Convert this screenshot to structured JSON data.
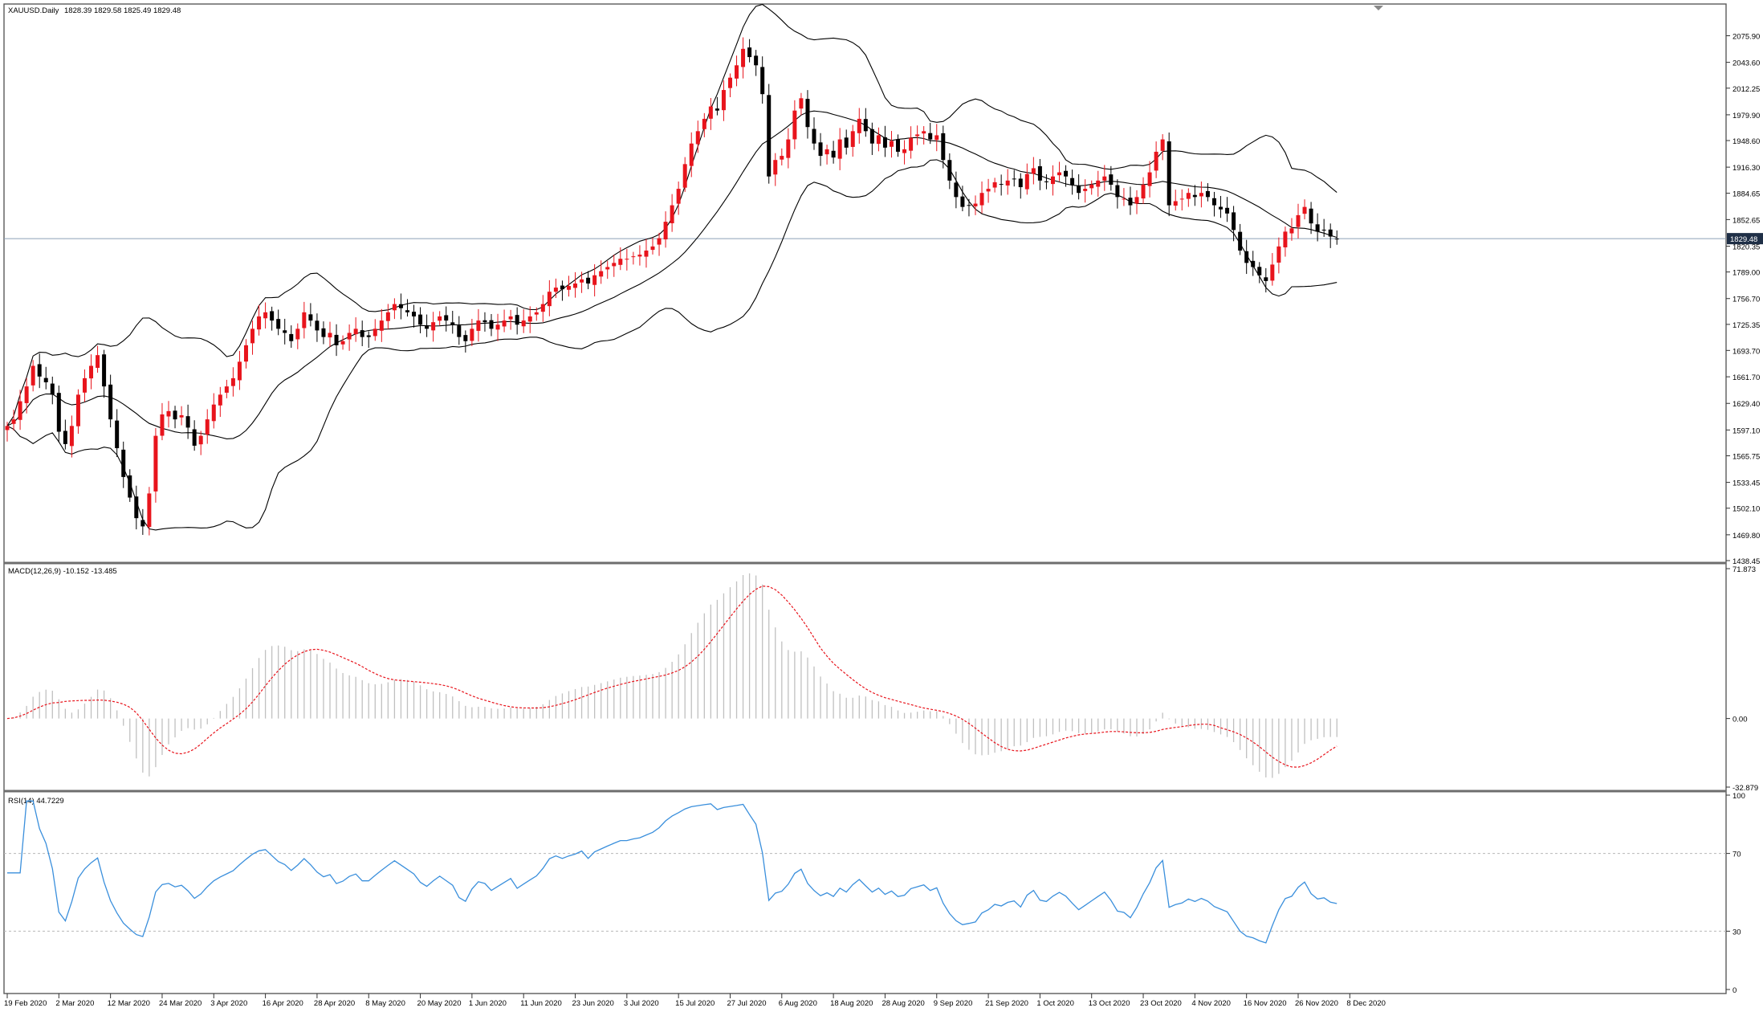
{
  "chart_data": {
    "type": "candlestick",
    "symbol": "XAUUSD.Daily",
    "ohlc_readout": "1828.39 1829.58 1825.49 1829.48",
    "current_price": 1829.48,
    "current_price_label": "1829.48",
    "colors": {
      "bull": "#e8141c",
      "bear": "#000000",
      "bands": "#000000",
      "price_line": "#8ea0b8",
      "macd_hist": "#c0c0c0",
      "macd_signal": "#e8141c",
      "rsi": "#3a8fdc",
      "rsi_levels": "#b8b8b8"
    },
    "price_axis": {
      "range": [
        1438.45,
        2092.0
      ],
      "tick_labels": [
        "2075.90",
        "2043.60",
        "2012.25",
        "1979.90",
        "1948.60",
        "1916.30",
        "1884.65",
        "1852.65",
        "1820.35",
        "1789.00",
        "1756.70",
        "1725.35",
        "1693.70",
        "1661.70",
        "1629.40",
        "1597.10",
        "1565.75",
        "1533.45",
        "1502.10",
        "1469.80",
        "1438.45"
      ]
    },
    "x_axis_labels": [
      "19 Feb 2020",
      "2 Mar 2020",
      "12 Mar 2020",
      "24 Mar 2020",
      "3 Apr 2020",
      "16 Apr 2020",
      "28 Apr 2020",
      "8 May 2020",
      "20 May 2020",
      "1 Jun 2020",
      "11 Jun 2020",
      "23 Jun 2020",
      "3 Jul 2020",
      "15 Jul 2020",
      "27 Jul 2020",
      "6 Aug 2020",
      "18 Aug 2020",
      "28 Aug 2020",
      "9 Sep 2020",
      "21 Sep 2020",
      "1 Oct 2020",
      "13 Oct 2020",
      "23 Oct 2020",
      "4 Nov 2020",
      "16 Nov 2020",
      "26 Nov 2020",
      "8 Dec 2020"
    ],
    "x_label_bar_index": [
      0,
      8,
      16,
      24,
      32,
      40,
      48,
      56,
      64,
      72,
      80,
      88,
      96,
      104,
      112,
      120,
      128,
      136,
      144,
      152,
      160,
      168,
      176,
      184,
      192,
      200,
      208
    ],
    "close": [
      1602,
      1610,
      1632,
      1650,
      1675,
      1662,
      1655,
      1640,
      1595,
      1580,
      1602,
      1640,
      1660,
      1675,
      1688,
      1650,
      1610,
      1575,
      1540,
      1515,
      1490,
      1480,
      1520,
      1590,
      1616,
      1620,
      1610,
      1615,
      1600,
      1578,
      1590,
      1610,
      1628,
      1640,
      1650,
      1660,
      1680,
      1700,
      1720,
      1735,
      1740,
      1730,
      1720,
      1715,
      1705,
      1720,
      1740,
      1730,
      1718,
      1710,
      1715,
      1700,
      1705,
      1715,
      1720,
      1710,
      1710,
      1720,
      1730,
      1740,
      1750,
      1745,
      1740,
      1735,
      1725,
      1720,
      1728,
      1735,
      1730,
      1725,
      1710,
      1705,
      1720,
      1730,
      1728,
      1720,
      1725,
      1730,
      1735,
      1725,
      1730,
      1735,
      1740,
      1750,
      1765,
      1770,
      1768,
      1772,
      1775,
      1780,
      1775,
      1785,
      1790,
      1795,
      1800,
      1805,
      1805,
      1808,
      1810,
      1815,
      1820,
      1830,
      1850,
      1870,
      1890,
      1920,
      1945,
      1960,
      1975,
      1990,
      1985,
      2010,
      2025,
      2040,
      2060,
      2050,
      2040,
      2005,
      1905,
      1925,
      1930,
      1950,
      1985,
      2000,
      1965,
      1945,
      1930,
      1938,
      1928,
      1950,
      1940,
      1960,
      1975,
      1960,
      1945,
      1955,
      1940,
      1948,
      1935,
      1938,
      1952,
      1956,
      1960,
      1950,
      1955,
      1925,
      1900,
      1880,
      1868,
      1870,
      1872,
      1885,
      1890,
      1898,
      1895,
      1900,
      1902,
      1892,
      1908,
      1915,
      1900,
      1898,
      1905,
      1910,
      1905,
      1895,
      1885,
      1890,
      1895,
      1900,
      1905,
      1895,
      1880,
      1878,
      1870,
      1880,
      1895,
      1910,
      1935,
      1950,
      1870,
      1875,
      1878,
      1885,
      1880,
      1885,
      1880,
      1870,
      1865,
      1860,
      1840,
      1815,
      1800,
      1795,
      1785,
      1778,
      1798,
      1820,
      1838,
      1842,
      1858,
      1868,
      1848,
      1838,
      1840,
      1832,
      1829.48
    ],
    "bands": {
      "period": 20,
      "deviation": 2
    },
    "macd": {
      "label": "MACD(12,26,9) -10.152 -13.485",
      "range": [
        -32.879,
        71.873
      ],
      "tick_labels": [
        "71.873",
        "0.00",
        "-32.879"
      ]
    },
    "rsi": {
      "label": "RSI(14) 44.7229",
      "range": [
        0,
        100
      ],
      "levels": [
        70,
        30
      ],
      "tick_labels": [
        "100",
        "70",
        "30",
        "0"
      ]
    }
  }
}
